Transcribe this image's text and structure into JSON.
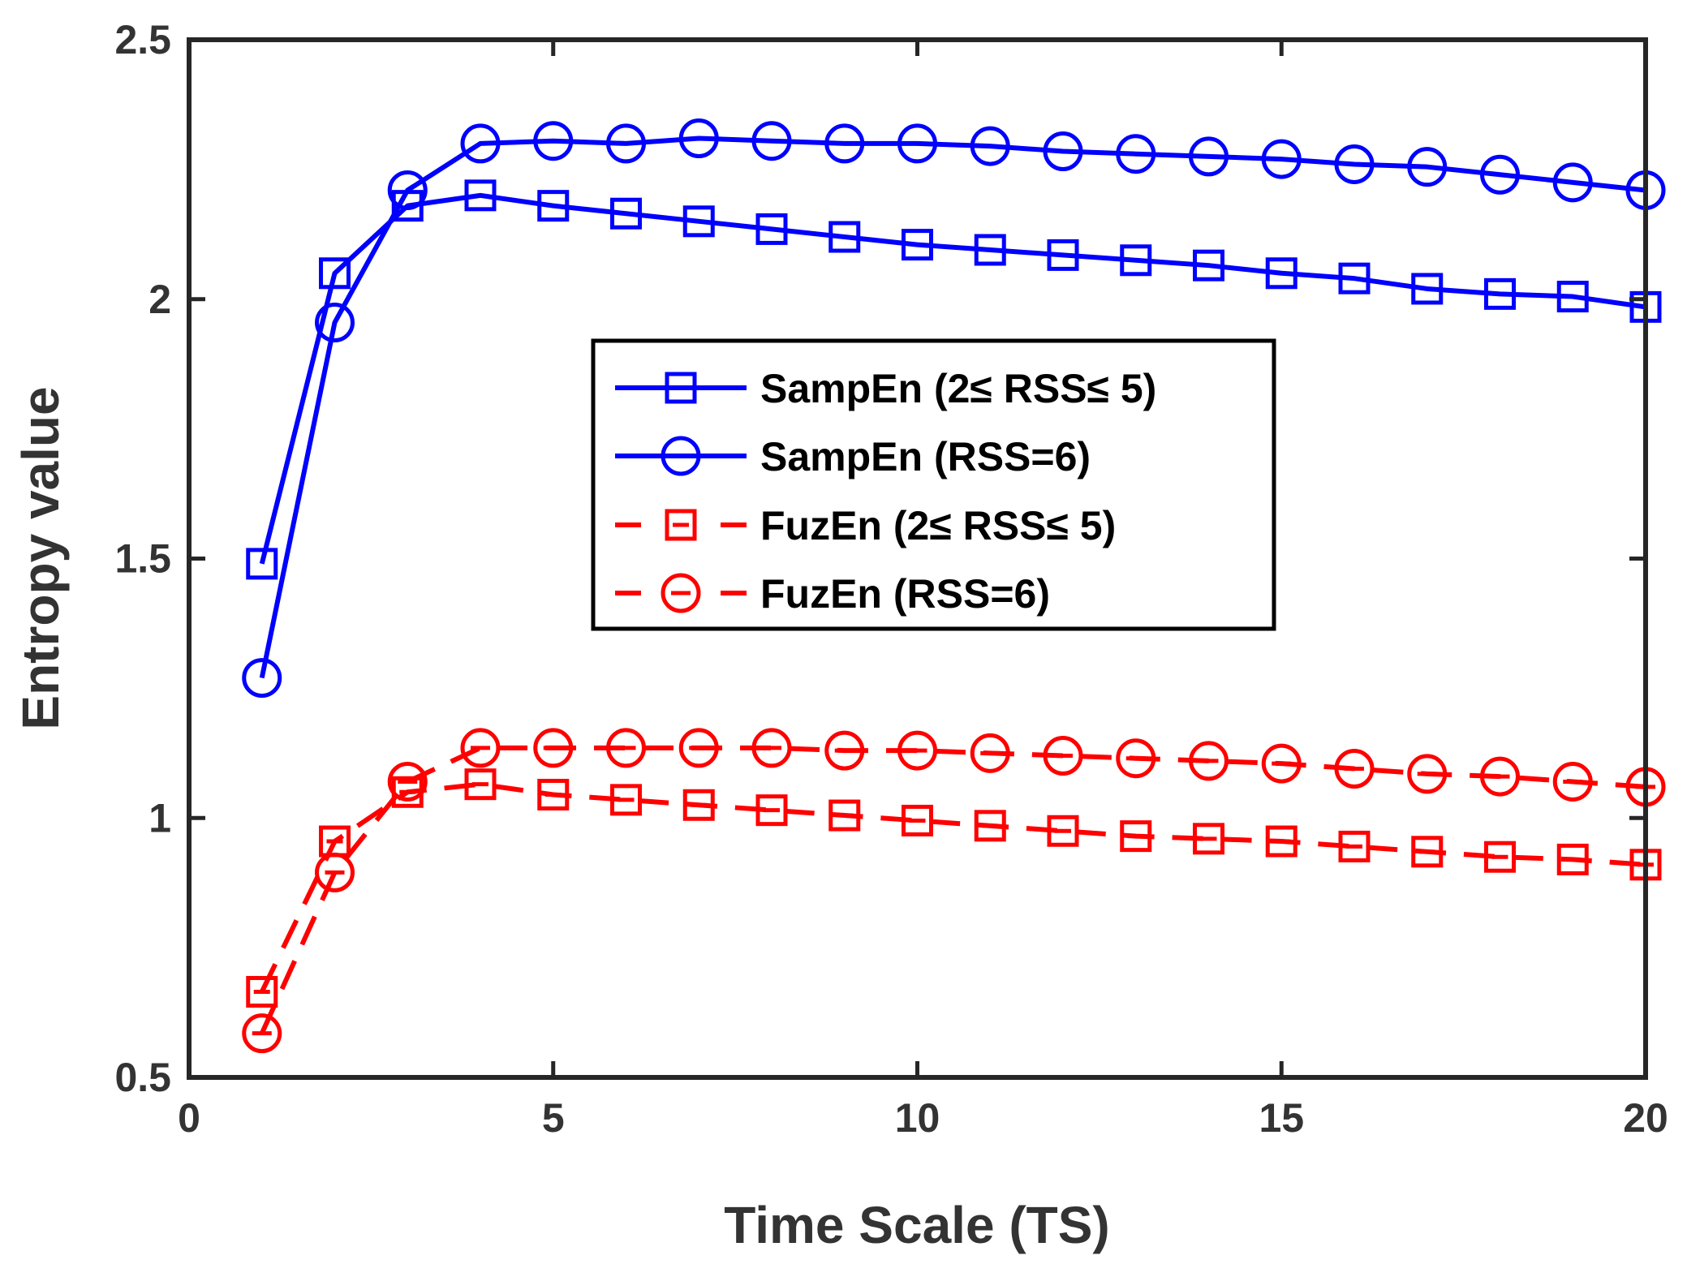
{
  "chart_data": {
    "type": "line",
    "title": "",
    "xlabel": "Time Scale (TS)",
    "ylabel": "Entropy value",
    "xlim": [
      0,
      20
    ],
    "ylim": [
      0.5,
      2.5
    ],
    "xticks": [
      0,
      5,
      10,
      15,
      20
    ],
    "xtick_labels": [
      "0",
      "5",
      "10",
      "15",
      "20"
    ],
    "yticks": [
      0.5,
      1,
      1.5,
      2,
      2.5
    ],
    "ytick_labels": [
      "0.5",
      "1",
      "1.5",
      "2",
      "2.5"
    ],
    "grid": false,
    "legend_position": "center",
    "x": [
      1,
      2,
      3,
      4,
      5,
      6,
      7,
      8,
      9,
      10,
      11,
      12,
      13,
      14,
      15,
      16,
      17,
      18,
      19,
      20
    ],
    "series": [
      {
        "name": "SampEn (2≤ RSS≤ 5)",
        "color": "#0000ff",
        "line_style": "solid",
        "marker": "square",
        "values": [
          1.49,
          2.05,
          2.18,
          2.2,
          2.18,
          2.165,
          2.15,
          2.135,
          2.12,
          2.105,
          2.095,
          2.085,
          2.075,
          2.065,
          2.05,
          2.04,
          2.02,
          2.01,
          2.005,
          1.985
        ]
      },
      {
        "name": "SampEn (RSS=6)",
        "color": "#0000ff",
        "line_style": "solid",
        "marker": "circle",
        "values": [
          1.27,
          1.955,
          2.21,
          2.3,
          2.305,
          2.3,
          2.31,
          2.305,
          2.3,
          2.3,
          2.295,
          2.285,
          2.28,
          2.275,
          2.27,
          2.26,
          2.255,
          2.24,
          2.225,
          2.21
        ]
      },
      {
        "name": "FuzEn (2≤ RSS≤ 5)",
        "color": "#ff0000",
        "line_style": "dashed",
        "marker": "square",
        "values": [
          0.665,
          0.955,
          1.05,
          1.065,
          1.045,
          1.035,
          1.025,
          1.015,
          1.005,
          0.995,
          0.985,
          0.975,
          0.965,
          0.96,
          0.955,
          0.945,
          0.935,
          0.925,
          0.92,
          0.91
        ]
      },
      {
        "name": "FuzEn (RSS=6)",
        "color": "#ff0000",
        "line_style": "dashed",
        "marker": "circle",
        "values": [
          0.585,
          0.895,
          1.07,
          1.135,
          1.135,
          1.135,
          1.135,
          1.135,
          1.13,
          1.13,
          1.125,
          1.12,
          1.115,
          1.11,
          1.105,
          1.095,
          1.085,
          1.08,
          1.07,
          1.06
        ]
      }
    ]
  }
}
